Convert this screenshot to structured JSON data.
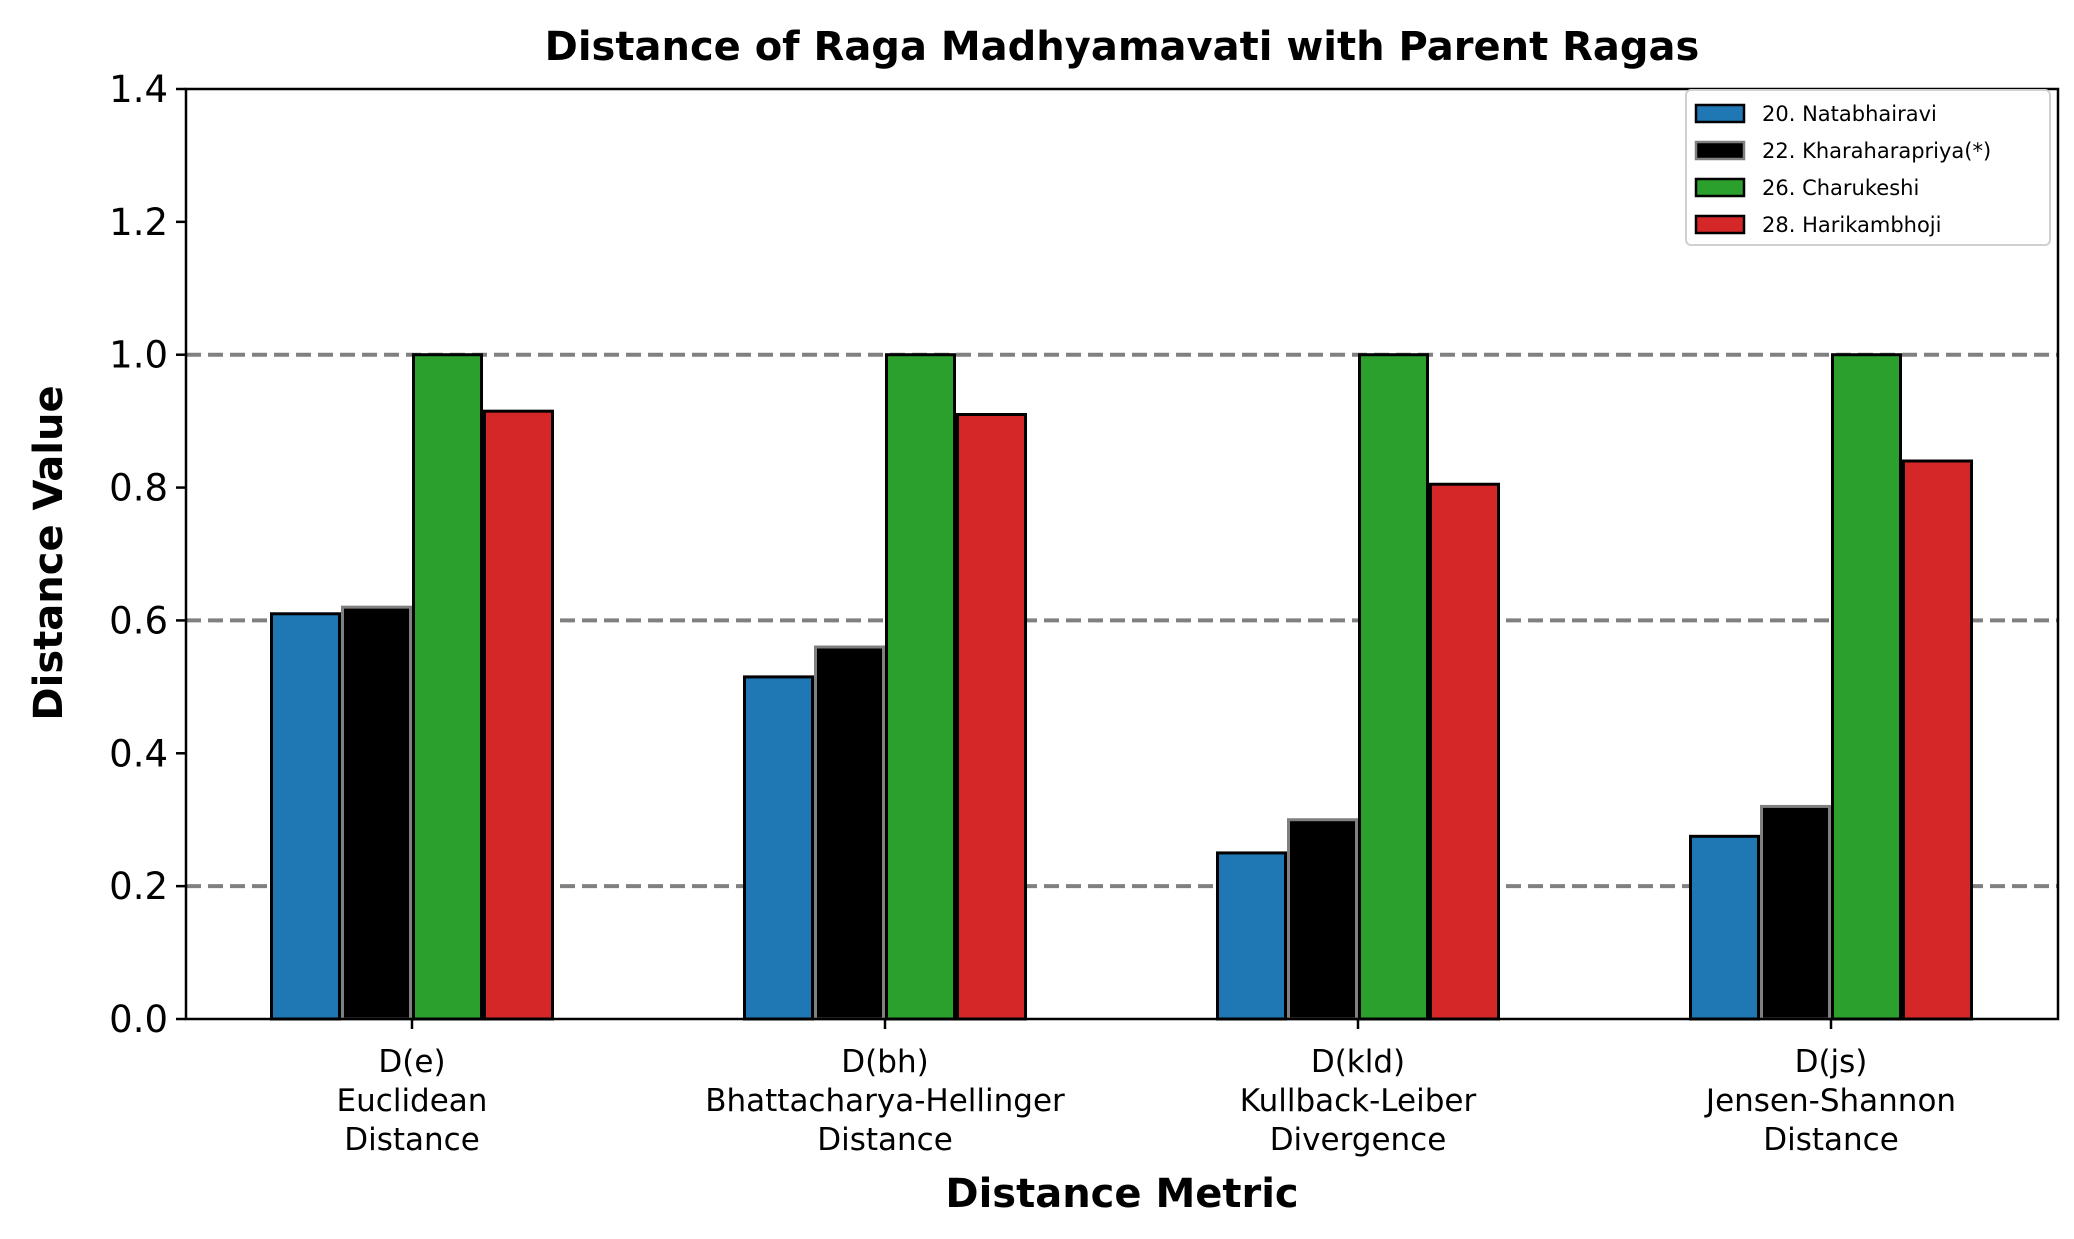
{
  "chart_data": {
    "type": "bar",
    "title": "Distance of Raga Madhyamavati with Parent Ragas",
    "xlabel": "Distance Metric",
    "ylabel": "Distance Value",
    "ylim": [
      0,
      1.4
    ],
    "yticks": [
      "0.0",
      "0.2",
      "0.4",
      "0.6",
      "0.8",
      "1.0",
      "1.2",
      "1.4"
    ],
    "reference_lines": [
      0.2,
      0.6,
      1.0
    ],
    "grid": false,
    "legend_position": "top-right",
    "categories": [
      [
        "D(e)",
        "Euclidean",
        "Distance"
      ],
      [
        "D(bh)",
        "Bhattacharya-Hellinger",
        "Distance"
      ],
      [
        "D(kld)",
        "Kullback-Leiber",
        "Divergence"
      ],
      [
        "D(js)",
        "Jensen-Shannon",
        "Distance"
      ]
    ],
    "series": [
      {
        "name": "20. Natabhairavi",
        "color": "#1f77b4",
        "edge": "#000000",
        "values": [
          0.61,
          0.515,
          0.25,
          0.275
        ]
      },
      {
        "name": "22. Kharaharapriya(*)",
        "color": "#000000",
        "edge": "#808080",
        "values": [
          0.62,
          0.56,
          0.3,
          0.32
        ]
      },
      {
        "name": "26. Charukeshi",
        "color": "#2ca02c",
        "edge": "#000000",
        "values": [
          1.0,
          1.0,
          1.0,
          1.0
        ]
      },
      {
        "name": "28. Harikambhoji",
        "color": "#d62728",
        "edge": "#000000",
        "values": [
          0.915,
          0.91,
          0.805,
          0.84
        ]
      }
    ]
  }
}
